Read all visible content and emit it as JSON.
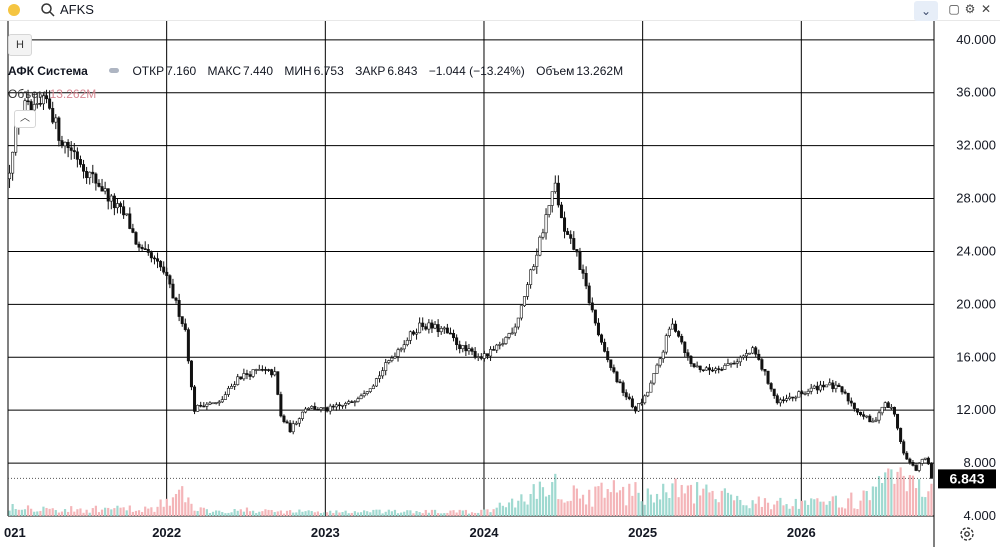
{
  "topbar": {
    "symbol": "AFKS",
    "search_icon": "search-icon",
    "collapse_icon": "chevron-down-icon"
  },
  "toolbar": {
    "h_label": "H"
  },
  "legend": {
    "name": "АФК Система",
    "open_label": "ОТКР",
    "open": "7.160",
    "high_label": "МАКС",
    "high": "7.440",
    "low_label": "МИН",
    "low": "6.753",
    "close_label": "ЗАКР",
    "close": "6.843",
    "change": "−1.044 (−13.24%)",
    "volume_label": "Объем",
    "volume": "13.262M"
  },
  "volume_legend": {
    "label": "Объем",
    "value": "13.262M"
  },
  "price_badge": "6.843",
  "colors": {
    "up": "#26a69a",
    "down": "#ef5350",
    "vol_up": "#9fd9d0",
    "vol_down": "#f4b5b8",
    "grid": "#000000"
  },
  "chart_data": {
    "type": "candlestick",
    "y_ticks": [
      4.0,
      8.0,
      12.0,
      16.0,
      20.0,
      24.0,
      28.0,
      32.0,
      36.0,
      40.0
    ],
    "y_tick_labels": [
      "4.000",
      "8.000",
      "12.000",
      "16.000",
      "20.000",
      "24.000",
      "28.000",
      "32.000",
      "36.000",
      "40.000"
    ],
    "ylim": [
      4,
      41.5
    ],
    "x_labels": [
      "021",
      "2022",
      "2023",
      "2024",
      "2025",
      "2026"
    ],
    "x_label_positions": [
      2021.0,
      2022.0,
      2023.0,
      2024.0,
      2025.0,
      2026.0
    ],
    "xlim": [
      2021.0,
      2026.83
    ],
    "last_close": 6.843,
    "close_path": [
      [
        2021.0,
        29.5
      ],
      [
        2021.04,
        33.0
      ],
      [
        2021.1,
        35.0
      ],
      [
        2021.17,
        34.5
      ],
      [
        2021.25,
        35.5
      ],
      [
        2021.33,
        32.5
      ],
      [
        2021.42,
        31.5
      ],
      [
        2021.5,
        30.0
      ],
      [
        2021.58,
        29.0
      ],
      [
        2021.67,
        27.5
      ],
      [
        2021.75,
        26.5
      ],
      [
        2021.83,
        24.0
      ],
      [
        2021.9,
        23.5
      ],
      [
        2021.98,
        22.5
      ],
      [
        2022.06,
        20.0
      ],
      [
        2022.12,
        18.0
      ],
      [
        2022.17,
        12.0
      ],
      [
        2022.23,
        12.5
      ],
      [
        2022.33,
        12.5
      ],
      [
        2022.45,
        14.5
      ],
      [
        2022.58,
        15.0
      ],
      [
        2022.68,
        14.8
      ],
      [
        2022.72,
        11.5
      ],
      [
        2022.78,
        10.5
      ],
      [
        2022.88,
        12.3
      ],
      [
        2023.0,
        12.0
      ],
      [
        2023.15,
        12.5
      ],
      [
        2023.3,
        14.0
      ],
      [
        2023.45,
        16.5
      ],
      [
        2023.6,
        18.5
      ],
      [
        2023.75,
        18.0
      ],
      [
        2023.88,
        16.5
      ],
      [
        2024.0,
        16.0
      ],
      [
        2024.1,
        16.8
      ],
      [
        2024.2,
        18.5
      ],
      [
        2024.3,
        22.5
      ],
      [
        2024.4,
        27.0
      ],
      [
        2024.45,
        29.0
      ],
      [
        2024.5,
        25.5
      ],
      [
        2024.58,
        24.0
      ],
      [
        2024.67,
        20.0
      ],
      [
        2024.75,
        16.5
      ],
      [
        2024.85,
        14.0
      ],
      [
        2024.95,
        12.0
      ],
      [
        2025.02,
        13.0
      ],
      [
        2025.1,
        15.5
      ],
      [
        2025.18,
        18.5
      ],
      [
        2025.22,
        18.0
      ],
      [
        2025.3,
        15.5
      ],
      [
        2025.4,
        15.0
      ],
      [
        2025.55,
        15.5
      ],
      [
        2025.7,
        16.5
      ],
      [
        2025.78,
        14.5
      ],
      [
        2025.85,
        12.5
      ],
      [
        2025.95,
        13.0
      ],
      [
        2026.05,
        13.5
      ],
      [
        2026.15,
        14.0
      ],
      [
        2026.25,
        13.5
      ],
      [
        2026.35,
        12.0
      ],
      [
        2026.45,
        11.0
      ],
      [
        2026.52,
        12.5
      ],
      [
        2026.58,
        12.0
      ],
      [
        2026.65,
        8.5
      ],
      [
        2026.72,
        7.5
      ],
      [
        2026.78,
        8.5
      ],
      [
        2026.83,
        6.843
      ]
    ],
    "volume_scale_note_hidden": false,
    "volume_profile": [
      [
        2021.0,
        0.55
      ],
      [
        2021.3,
        0.3
      ],
      [
        2021.9,
        0.35
      ],
      [
        2022.1,
        1.0
      ],
      [
        2022.2,
        0.3
      ],
      [
        2023.0,
        0.2
      ],
      [
        2024.0,
        0.2
      ],
      [
        2024.28,
        0.9
      ],
      [
        2024.4,
        1.6
      ],
      [
        2024.6,
        0.9
      ],
      [
        2024.85,
        1.2
      ],
      [
        2025.0,
        1.0
      ],
      [
        2025.2,
        1.2
      ],
      [
        2025.5,
        0.9
      ],
      [
        2025.75,
        0.7
      ],
      [
        2026.0,
        0.5
      ],
      [
        2026.4,
        0.8
      ],
      [
        2026.55,
        1.6
      ],
      [
        2026.7,
        1.4
      ],
      [
        2026.83,
        1.0
      ]
    ]
  }
}
